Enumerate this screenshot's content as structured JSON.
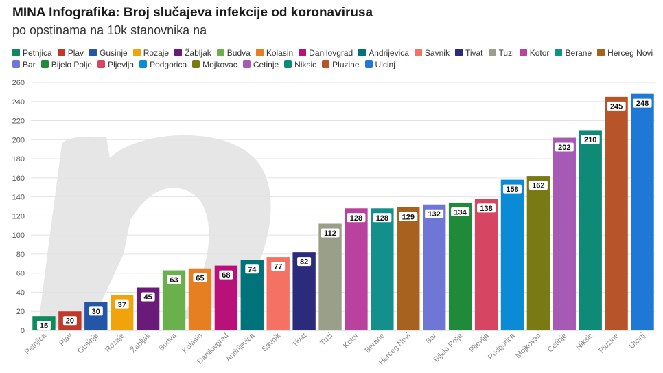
{
  "header": {
    "title": "MINA Infografika: Broj slučajeva infekcije od koronavirusa",
    "subtitle": "po opstinama na 10k stanovnika na"
  },
  "chart_data": {
    "type": "bar",
    "title": "MINA Infografika: Broj slučajeva infekcije od koronavirusa",
    "subtitle": "po opstinama na 10k stanovnika na",
    "xlabel": "",
    "ylabel": "",
    "ylim": [
      0,
      260
    ],
    "yticks": [
      "0",
      "20",
      "40",
      "60",
      "80",
      "100",
      "120",
      "140",
      "160",
      "180",
      "200",
      "220",
      "240",
      "260"
    ],
    "grid": true,
    "legend_position": "top",
    "categories": [
      "Petnjica",
      "Plav",
      "Gusinje",
      "Rozaje",
      "Žabljak",
      "Budva",
      "Kolasin",
      "Danilovgrad",
      "Andrijevica",
      "Savnik",
      "Tivat",
      "Tuzi",
      "Kotor",
      "Berane",
      "Herceg Novi",
      "Bar",
      "Bijelo Polje",
      "Pljevlja",
      "Podgorica",
      "Mojkovac",
      "Cetinje",
      "Niksic",
      "Pluzine",
      "Ulcinj"
    ],
    "values": [
      15,
      20,
      30,
      37,
      45,
      63,
      65,
      68,
      74,
      77,
      82,
      112,
      128,
      128,
      129,
      132,
      134,
      138,
      158,
      162,
      202,
      210,
      245,
      248
    ],
    "colors": [
      "#0f8a5f",
      "#c0392b",
      "#2456a8",
      "#f0a30a",
      "#6a1b7a",
      "#6ab04c",
      "#e67e22",
      "#b8127a",
      "#00737a",
      "#f47163",
      "#2c2a7a",
      "#9a9f8a",
      "#b8429e",
      "#13908c",
      "#a8621f",
      "#6e76d6",
      "#1f8a3a",
      "#d64662",
      "#0b8bd6",
      "#7a7a14",
      "#a65ab5",
      "#0f8a76",
      "#b8542a",
      "#1f78d6"
    ],
    "legend": [
      "Petnjica",
      "Plav",
      "Gusinje",
      "Rozaje",
      "Žabljak",
      "Budva",
      "Kolasin",
      "Danilovgrad",
      "Andrijevica",
      "Savnik",
      "Tivat",
      "Tuzi",
      "Kotor",
      "Berane",
      "Herceg Novi",
      "Bar",
      "Bijelo Polje",
      "Pljevlja",
      "Podgorica",
      "Mojkovac",
      "Cetinje",
      "Niksic",
      "Pluzine",
      "Ulcinj"
    ]
  }
}
